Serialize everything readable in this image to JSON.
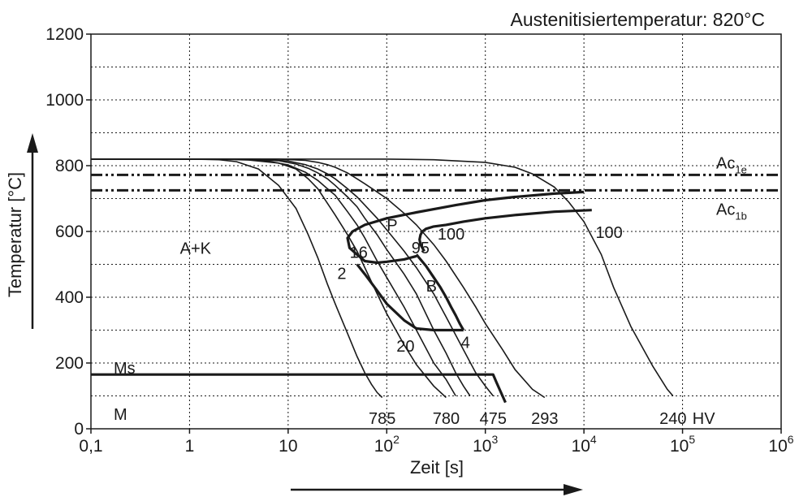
{
  "chart_data": {
    "type": "line",
    "title": "Austenitisiertemperatur: 820°C",
    "xlabel": "Zeit [s]",
    "ylabel": "Temperatur [°C]",
    "xscale": "log",
    "xlim": [
      0.1,
      1000000
    ],
    "ylim": [
      0,
      1200
    ],
    "grid": true,
    "x_ticks": [
      {
        "value": 0.1,
        "label": "0,1"
      },
      {
        "value": 1,
        "label": "1"
      },
      {
        "value": 10,
        "label": "10"
      },
      {
        "value": 100,
        "base": "10",
        "exp": "2"
      },
      {
        "value": 1000,
        "base": "10",
        "exp": "3"
      },
      {
        "value": 10000,
        "base": "10",
        "exp": "4"
      },
      {
        "value": 100000,
        "base": "10",
        "exp": "5"
      },
      {
        "value": 1000000,
        "base": "10",
        "exp": "6"
      }
    ],
    "y_ticks": [
      {
        "value": 0,
        "label": "0"
      },
      {
        "value": 200,
        "label": "200"
      },
      {
        "value": 400,
        "label": "400"
      },
      {
        "value": 600,
        "label": "600"
      },
      {
        "value": 800,
        "label": "800"
      },
      {
        "value": 1000,
        "label": "1000"
      },
      {
        "value": 1200,
        "label": "1200"
      }
    ],
    "reference_lines": [
      {
        "main": "Ac",
        "sub": "1e",
        "y": 772
      },
      {
        "main": "Ac",
        "sub": "1b",
        "y": 725
      }
    ],
    "cooling_curves": [
      {
        "x": [
          0.1,
          1,
          2,
          3,
          5,
          8,
          12,
          16,
          20,
          25,
          30,
          40,
          50,
          60,
          70,
          80,
          90
        ],
        "y": [
          820,
          820,
          818,
          812,
          790,
          740,
          670,
          590,
          520,
          440,
          380,
          290,
          220,
          170,
          135,
          110,
          95
        ]
      },
      {
        "x": [
          0.1,
          2,
          4,
          8,
          12,
          16,
          20,
          30,
          40,
          50,
          60,
          80,
          100,
          150,
          200,
          300,
          400
        ],
        "y": [
          820,
          820,
          817,
          808,
          790,
          760,
          730,
          650,
          590,
          540,
          490,
          410,
          350,
          255,
          195,
          130,
          95
        ]
      },
      {
        "x": [
          0.1,
          3,
          6,
          10,
          15,
          20,
          25,
          30,
          40,
          50,
          60,
          80,
          100,
          150,
          200,
          300,
          400,
          500
        ],
        "y": [
          820,
          820,
          815,
          802,
          780,
          755,
          730,
          710,
          660,
          620,
          580,
          510,
          460,
          370,
          300,
          200,
          150,
          100
        ]
      },
      {
        "x": [
          0.1,
          4,
          8,
          12,
          16,
          20,
          25,
          30,
          40,
          50,
          60,
          80,
          100,
          150,
          200,
          300,
          400,
          500,
          600,
          700
        ],
        "y": [
          820,
          820,
          815,
          805,
          792,
          778,
          760,
          740,
          705,
          675,
          640,
          590,
          545,
          470,
          410,
          300,
          230,
          170,
          130,
          100
        ]
      },
      {
        "x": [
          0.1,
          5,
          10,
          15,
          20,
          25,
          30,
          40,
          50,
          60,
          80,
          100,
          150,
          200,
          300,
          400,
          600,
          800,
          1000,
          1200
        ],
        "y": [
          820,
          820,
          814,
          803,
          790,
          775,
          760,
          730,
          705,
          680,
          640,
          605,
          540,
          490,
          410,
          340,
          240,
          170,
          130,
          100
        ]
      },
      {
        "x": [
          0.1,
          8,
          15,
          20,
          25,
          30,
          40,
          50,
          60,
          80,
          100,
          150,
          200,
          300,
          400,
          600,
          800,
          1000,
          1500,
          2000,
          3000,
          4000
        ],
        "y": [
          820,
          820,
          816,
          810,
          803,
          795,
          778,
          760,
          745,
          720,
          700,
          655,
          620,
          560,
          510,
          430,
          370,
          320,
          240,
          180,
          120,
          95
        ]
      },
      {
        "x": [
          0.1,
          100,
          300,
          1000,
          2000,
          3000,
          5000,
          7000,
          10000,
          15000,
          20000,
          30000,
          50000,
          70000,
          80000
        ],
        "y": [
          820,
          820,
          818,
          810,
          795,
          775,
          735,
          690,
          630,
          530,
          430,
          310,
          190,
          120,
          100
        ]
      }
    ],
    "curve_endpoints": [
      {
        "label": "785",
        "x": 90
      },
      {
        "label": "780",
        "x": 400
      },
      {
        "label": "475",
        "x": 1200
      },
      {
        "label": "293",
        "x": 4000
      },
      {
        "label": "240",
        "x": 80000
      }
    ],
    "hv_unit": "HV",
    "curve_numbers": [
      {
        "label": "2",
        "x": 35,
        "y": 470
      },
      {
        "label": "16",
        "x": 52,
        "y": 535
      },
      {
        "label": "95",
        "x": 220,
        "y": 548
      },
      {
        "label": "100",
        "x": 450,
        "y": 590
      },
      {
        "label": "100",
        "x": 18000,
        "y": 595
      },
      {
        "label": "20",
        "x": 155,
        "y": 250
      },
      {
        "label": "4",
        "x": 630,
        "y": 260
      }
    ],
    "transformation_lines": [
      {
        "name": "P-start",
        "x": [
          10000,
          5000,
          2000,
          1000,
          500,
          200,
          100,
          60,
          45,
          40,
          42,
          50,
          60,
          80,
          100,
          150,
          200
        ],
        "y": [
          720,
          715,
          705,
          695,
          680,
          658,
          640,
          620,
          600,
          580,
          550,
          530,
          510,
          505,
          508,
          515,
          525
        ]
      },
      {
        "name": "P-end",
        "x": [
          12000,
          5000,
          2000,
          1000,
          600,
          400,
          300,
          250,
          230,
          220,
          215,
          220,
          240
        ],
        "y": [
          665,
          660,
          650,
          640,
          630,
          620,
          615,
          608,
          600,
          590,
          575,
          560,
          540
        ]
      },
      {
        "name": "B-start",
        "x": [
          50,
          60,
          80,
          100,
          150,
          200,
          300,
          400,
          500,
          600
        ],
        "y": [
          500,
          470,
          420,
          380,
          330,
          305,
          300,
          300,
          300,
          300
        ]
      },
      {
        "name": "B-end",
        "x": [
          200,
          250,
          300,
          350,
          400,
          450,
          500,
          550,
          600
        ],
        "y": [
          530,
          495,
          460,
          430,
          400,
          370,
          345,
          320,
          300
        ]
      },
      {
        "name": "Ms",
        "x": [
          0.1,
          1200,
          1300,
          1600
        ],
        "y": [
          165,
          165,
          140,
          80
        ]
      }
    ],
    "region_labels": [
      {
        "label": "A+K",
        "x": 0.8,
        "y": 550
      },
      {
        "label": "P",
        "x": 100,
        "y": 620
      },
      {
        "label": "B",
        "x": 250,
        "y": 435
      },
      {
        "label": "Ms",
        "x": 0.17,
        "y": 185
      },
      {
        "label": "M",
        "x": 0.17,
        "y": 45
      }
    ]
  }
}
